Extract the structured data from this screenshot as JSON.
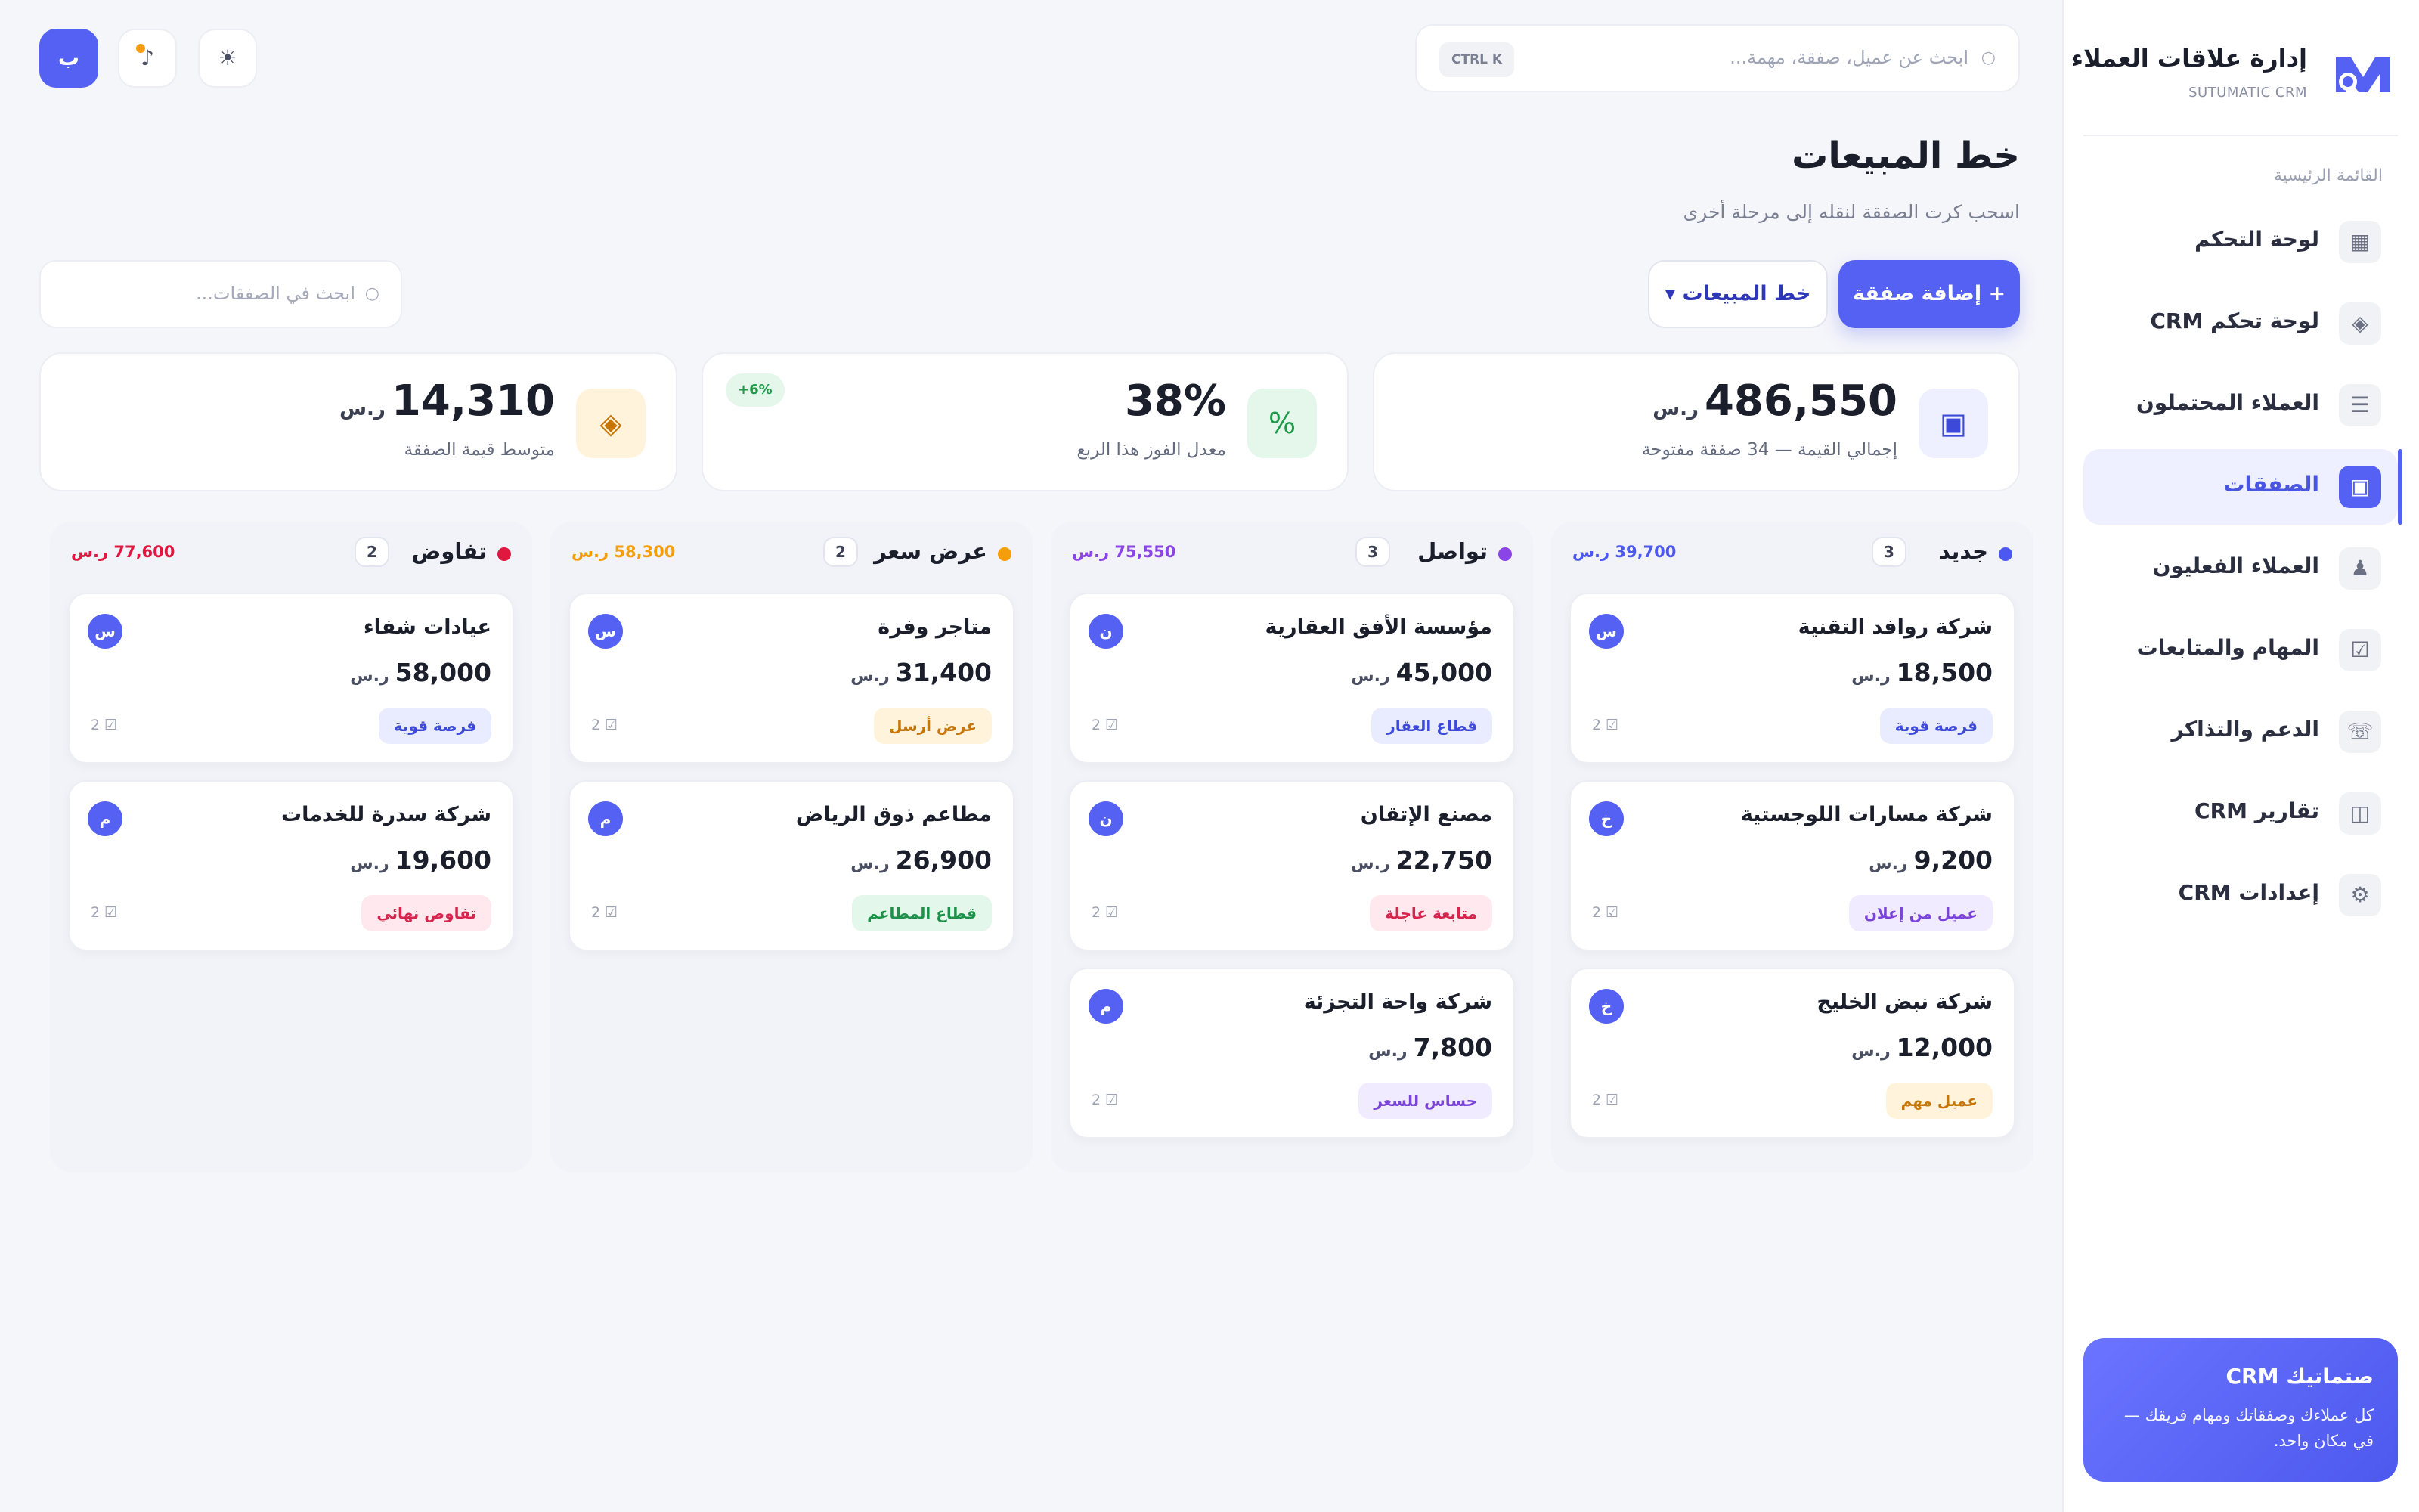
{
  "brand": {
    "title": "إدارة علاقات العملاء",
    "subtitle": "SUTUMATIC CRM",
    "logo_color": "#5561f2"
  },
  "sidebar": {
    "section": "القائمة الرئيسية",
    "items": [
      {
        "label": "لوحة التحكم",
        "icon": "grid-icon",
        "glyph": "▦"
      },
      {
        "label": "لوحة تحكم CRM",
        "icon": "diamond-icon",
        "glyph": "◈"
      },
      {
        "label": "العملاء المحتملون",
        "icon": "list-icon",
        "glyph": "☰"
      },
      {
        "label": "الصفقات",
        "icon": "deals-icon",
        "glyph": "▣"
      },
      {
        "label": "العملاء الفعليون",
        "icon": "user-icon",
        "glyph": "♟"
      },
      {
        "label": "المهام والمتابعات",
        "icon": "checkbox-icon",
        "glyph": "☑"
      },
      {
        "label": "الدعم والتذاكر",
        "icon": "phone-icon",
        "glyph": "☏"
      },
      {
        "label": "تقارير CRM",
        "icon": "report-icon",
        "glyph": "◫"
      },
      {
        "label": "إعدادات CRM",
        "icon": "gear-icon",
        "glyph": "⚙"
      }
    ],
    "active_index": 3,
    "promo": {
      "title": "صتماتيك CRM",
      "text": "كل عملاءك وصفقاتك ومهام فريقك — في مكان واحد."
    }
  },
  "topbar": {
    "search_placeholder": "ابحث عن عميل، صفقة، مهمة...",
    "search_icon": "○",
    "shortcut": "CTRL K",
    "theme_glyph": "☀",
    "notify_glyph": "♪",
    "user_initial": "ب"
  },
  "page": {
    "title": "خط المبيعات",
    "subtitle": "اسحب كرت الصفقة لنقله إلى مرحلة أخرى",
    "add_button": "+ إضافة صفقة",
    "view_button": "خط المبيعات ▾",
    "deal_search_placeholder": "ابحث في الصفقات...",
    "deal_search_icon": "○"
  },
  "stats": [
    {
      "value": "486,550",
      "unit": "ر.س",
      "label": "إجمالي القيمة — 34 صفقة مفتوحة",
      "glyph": "▣",
      "icon_bg": "#eef0ff",
      "icon_color": "#3d49d8",
      "badge": ""
    },
    {
      "value": "38%",
      "unit": "",
      "label": "معدل الفوز هذا الربع",
      "glyph": "%",
      "icon_bg": "#e4f7ea",
      "icon_color": "#1e9a4a",
      "badge": "+6%"
    },
    {
      "value": "14,310",
      "unit": "ر.س",
      "label": "متوسط قيمة الصفقة",
      "glyph": "◈",
      "icon_bg": "#fff3dc",
      "icon_color": "#c77606",
      "badge": ""
    }
  ],
  "columns": [
    {
      "title": "جديد",
      "count": "3",
      "total": "39,700 ر.س",
      "color": "#4d59ee",
      "cards": [
        {
          "name": "شركة روافد التقنية",
          "amount": "18,500",
          "unit": "ر.س",
          "tag": "فرصة قوية",
          "tag_style": "blue",
          "avatar": "س",
          "tasks": "2 ☑"
        },
        {
          "name": "شركة مسارات اللوجستية",
          "amount": "9,200",
          "unit": "ر.س",
          "tag": "عميل من إعلان",
          "tag_style": "purple",
          "avatar": "خ",
          "tasks": "2 ☑"
        },
        {
          "name": "شركة نبض الخليج",
          "amount": "12,000",
          "unit": "ر.س",
          "tag": "عميل مهم",
          "tag_style": "amber",
          "avatar": "خ",
          "tasks": "2 ☑"
        }
      ]
    },
    {
      "title": "تواصل",
      "count": "3",
      "total": "75,550 ر.س",
      "color": "#8b44e6",
      "cards": [
        {
          "name": "مؤسسة الأفق العقارية",
          "amount": "45,000",
          "unit": "ر.س",
          "tag": "قطاع العقار",
          "tag_style": "blue",
          "avatar": "ن",
          "tasks": "2 ☑"
        },
        {
          "name": "مصنع الإتقان",
          "amount": "22,750",
          "unit": "ر.س",
          "tag": "متابعة عاجلة",
          "tag_style": "red",
          "avatar": "ن",
          "tasks": "2 ☑"
        },
        {
          "name": "شركة واحة التجزئة",
          "amount": "7,800",
          "unit": "ر.س",
          "tag": "حساس للسعر",
          "tag_style": "purple",
          "avatar": "م",
          "tasks": "2 ☑"
        }
      ]
    },
    {
      "title": "عرض سعر",
      "count": "2",
      "total": "58,300 ر.س",
      "color": "#f59e0b",
      "cards": [
        {
          "name": "متاجر وفرة",
          "amount": "31,400",
          "unit": "ر.س",
          "tag": "عرض أرسل",
          "tag_style": "amber",
          "avatar": "س",
          "tasks": "2 ☑"
        },
        {
          "name": "مطاعم ذوق الرياض",
          "amount": "26,900",
          "unit": "ر.س",
          "tag": "قطاع المطاعم",
          "tag_style": "green",
          "avatar": "م",
          "tasks": "2 ☑"
        }
      ]
    },
    {
      "title": "تفاوض",
      "count": "2",
      "total": "77,600 ر.س",
      "color": "#e0183f",
      "cards": [
        {
          "name": "عيادات شفاء",
          "amount": "58,000",
          "unit": "ر.س",
          "tag": "فرصة قوية",
          "tag_style": "blue",
          "avatar": "س",
          "tasks": "2 ☑"
        },
        {
          "name": "شركة سدرة للخدمات",
          "amount": "19,600",
          "unit": "ر.س",
          "tag": "تفاوض نهائي",
          "tag_style": "red",
          "avatar": "م",
          "tasks": "2 ☑"
        }
      ]
    }
  ]
}
